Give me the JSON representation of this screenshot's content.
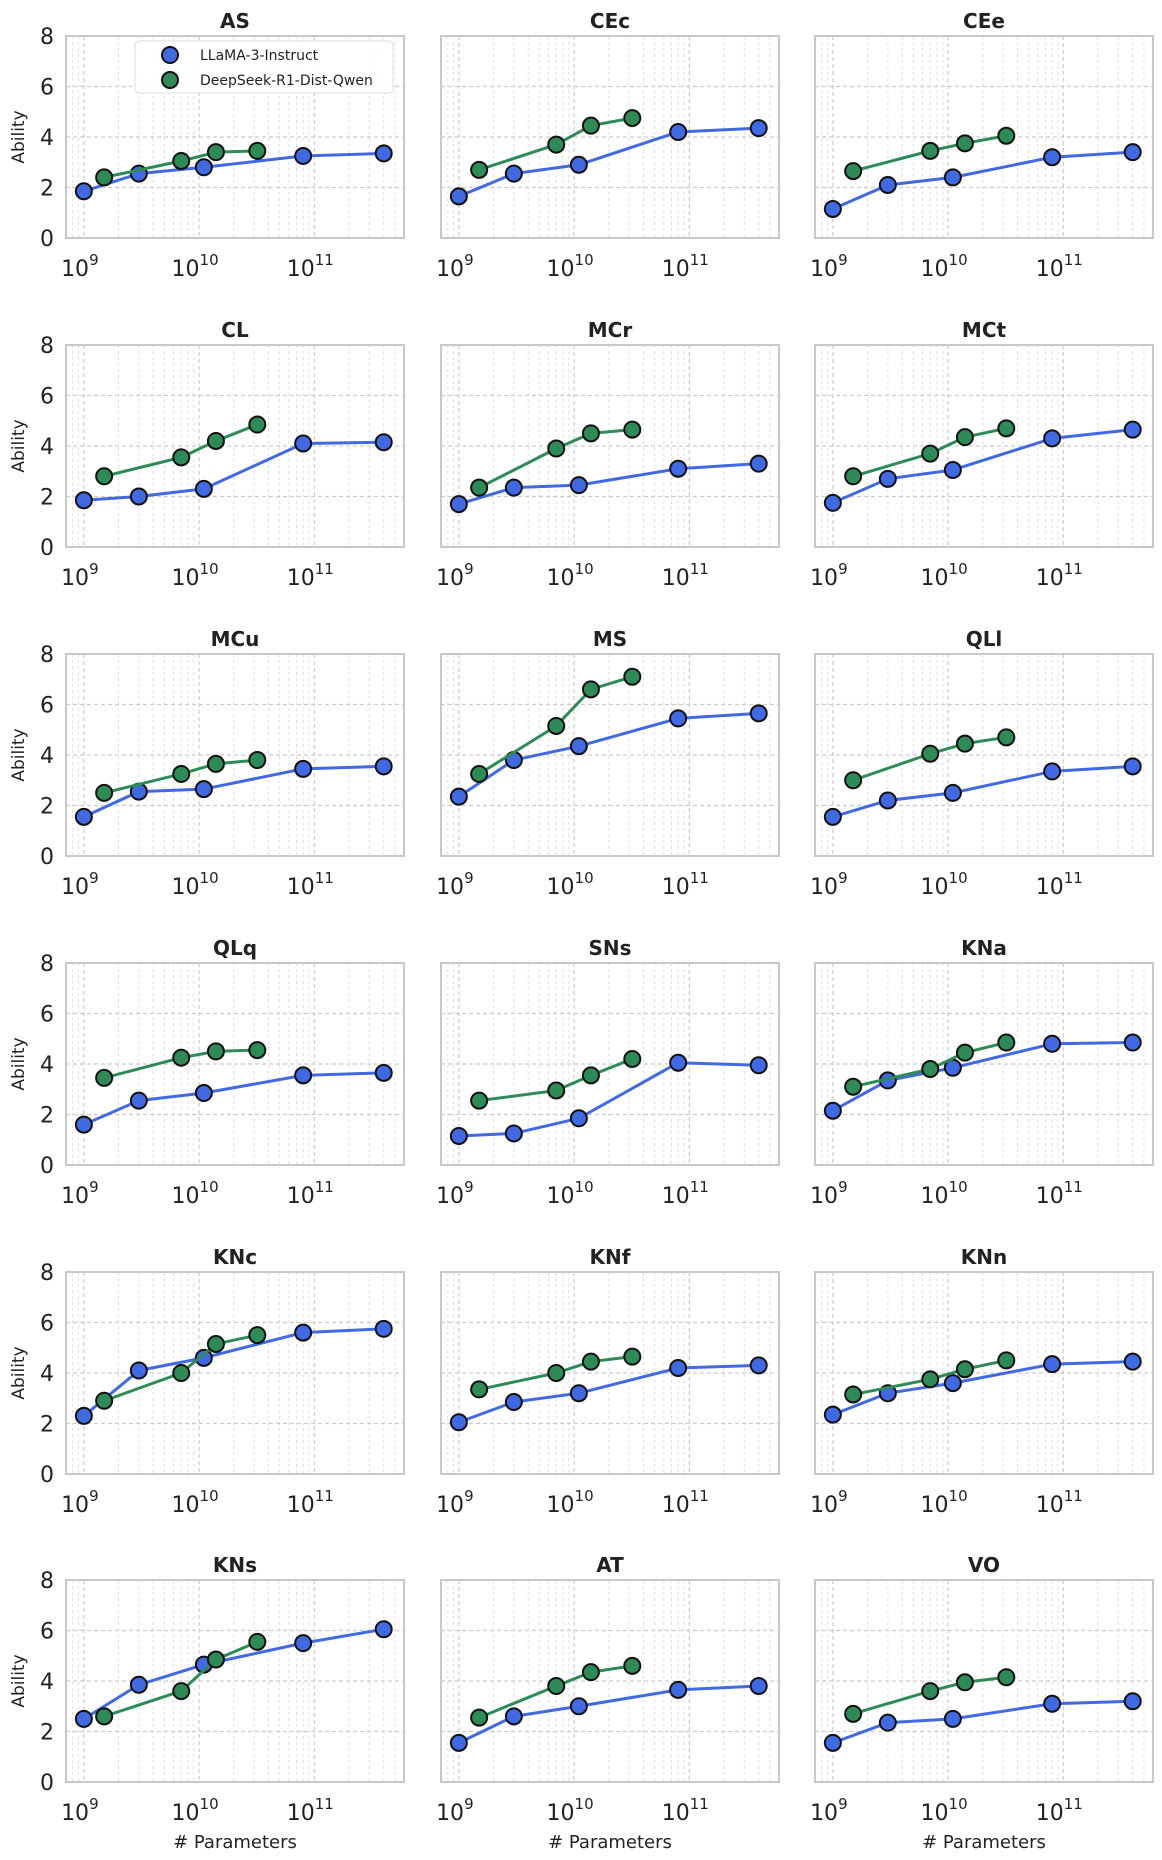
{
  "chart_data": {
    "type": "line",
    "grid": true,
    "layout": "6 rows x 3 columns of subplots",
    "x_scale": "log",
    "xlim": [
      700000000.0,
      600000000000.0
    ],
    "ylim": [
      0,
      8
    ],
    "y_ticks": [
      0,
      2,
      4,
      6,
      8
    ],
    "x_tick_labels": [
      {
        "value": 1000000000.0,
        "base": "10",
        "exp": "9"
      },
      {
        "value": 10000000000.0,
        "base": "10",
        "exp": "10"
      },
      {
        "value": 100000000000.0,
        "base": "10",
        "exp": "11"
      }
    ],
    "ylabel": "Ability",
    "xlabel": "# Parameters",
    "legend_location": "top (first subplot)",
    "series": [
      {
        "name": "LLaMA-3-Instruct",
        "color": "#4169e1",
        "x": [
          1000000000.0,
          3000000000.0,
          11000000000.0,
          80000000000.0,
          400000000000.0
        ]
      },
      {
        "name": "DeepSeek-R1-Dist-Qwen",
        "color": "#2e8b57",
        "x": [
          1500000000.0,
          7000000000.0,
          14000000000.0,
          32000000000.0
        ]
      }
    ],
    "panels": [
      {
        "title": "AS",
        "llama": [
          1.85,
          2.55,
          2.8,
          3.25,
          3.35
        ],
        "deepseek": [
          2.4,
          3.05,
          3.4,
          3.45
        ]
      },
      {
        "title": "CEc",
        "llama": [
          1.65,
          2.55,
          2.9,
          4.2,
          4.35
        ],
        "deepseek": [
          2.7,
          3.7,
          4.45,
          4.75
        ]
      },
      {
        "title": "CEe",
        "llama": [
          1.15,
          2.1,
          2.4,
          3.2,
          3.4
        ],
        "deepseek": [
          2.65,
          3.45,
          3.75,
          4.05
        ]
      },
      {
        "title": "CL",
        "llama": [
          1.85,
          2.0,
          2.3,
          4.1,
          4.15
        ],
        "deepseek": [
          2.8,
          3.55,
          4.2,
          4.85
        ]
      },
      {
        "title": "MCr",
        "llama": [
          1.7,
          2.35,
          2.45,
          3.1,
          3.3
        ],
        "deepseek": [
          2.35,
          3.9,
          4.5,
          4.65
        ]
      },
      {
        "title": "MCt",
        "llama": [
          1.75,
          2.7,
          3.05,
          4.3,
          4.65
        ],
        "deepseek": [
          2.8,
          3.7,
          4.35,
          4.7
        ]
      },
      {
        "title": "MCu",
        "llama": [
          1.55,
          2.55,
          2.65,
          3.45,
          3.55
        ],
        "deepseek": [
          2.5,
          3.25,
          3.65,
          3.8
        ]
      },
      {
        "title": "MS",
        "llama": [
          2.35,
          3.8,
          4.35,
          5.45,
          5.65
        ],
        "deepseek": [
          3.25,
          5.15,
          6.6,
          7.1
        ]
      },
      {
        "title": "QLl",
        "llama": [
          1.55,
          2.2,
          2.5,
          3.35,
          3.55
        ],
        "deepseek": [
          3.0,
          4.05,
          4.45,
          4.7
        ]
      },
      {
        "title": "QLq",
        "llama": [
          1.6,
          2.55,
          2.85,
          3.55,
          3.65
        ],
        "deepseek": [
          3.45,
          4.25,
          4.5,
          4.55
        ]
      },
      {
        "title": "SNs",
        "llama": [
          1.15,
          1.25,
          1.85,
          4.05,
          3.95
        ],
        "deepseek": [
          2.55,
          2.95,
          3.55,
          4.2
        ]
      },
      {
        "title": "KNa",
        "llama": [
          2.15,
          3.35,
          3.85,
          4.8,
          4.85
        ],
        "deepseek": [
          3.1,
          3.8,
          4.45,
          4.85
        ]
      },
      {
        "title": "KNc",
        "llama": [
          2.3,
          4.1,
          4.6,
          5.6,
          5.75
        ],
        "deepseek": [
          2.9,
          4.0,
          5.15,
          5.5
        ]
      },
      {
        "title": "KNf",
        "llama": [
          2.05,
          2.85,
          3.2,
          4.2,
          4.3
        ],
        "deepseek": [
          3.35,
          4.0,
          4.45,
          4.65
        ]
      },
      {
        "title": "KNn",
        "llama": [
          2.35,
          3.2,
          3.6,
          4.35,
          4.45
        ],
        "deepseek": [
          3.15,
          3.75,
          4.15,
          4.5
        ]
      },
      {
        "title": "KNs",
        "llama": [
          2.5,
          3.85,
          4.65,
          5.5,
          6.05
        ],
        "deepseek": [
          2.6,
          3.6,
          4.85,
          5.55
        ]
      },
      {
        "title": "AT",
        "llama": [
          1.55,
          2.6,
          3.0,
          3.65,
          3.8
        ],
        "deepseek": [
          2.55,
          3.8,
          4.35,
          4.6
        ]
      },
      {
        "title": "VO",
        "llama": [
          1.55,
          2.35,
          2.5,
          3.1,
          3.2
        ],
        "deepseek": [
          2.7,
          3.6,
          3.95,
          4.15
        ]
      }
    ]
  }
}
